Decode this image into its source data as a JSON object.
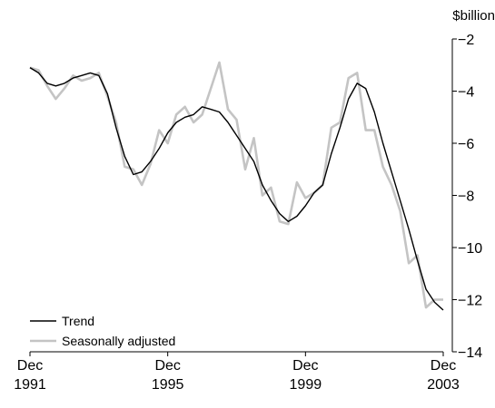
{
  "chart_data": {
    "type": "line",
    "y_unit": "$billion",
    "ylim": [
      -14,
      -2
    ],
    "y_ticks": [
      -2,
      -4,
      -6,
      -8,
      -10,
      -12,
      -14
    ],
    "y_tick_labels": [
      "−2",
      "−4",
      "−6",
      "−8",
      "−10",
      "−12",
      "−14"
    ],
    "x_ticks": [
      {
        "label_month": "Dec",
        "label_year": "1991",
        "x": "1991-12"
      },
      {
        "label_month": "Dec",
        "label_year": "1995",
        "x": "1995-12"
      },
      {
        "label_month": "Dec",
        "label_year": "1999",
        "x": "1999-12"
      },
      {
        "label_month": "Dec",
        "label_year": "2003",
        "x": "2003-12"
      }
    ],
    "grid": false,
    "legend_position": "bottom-left",
    "colors": {
      "trend": "#000000",
      "seasonally_adjusted": "#c4c4c4"
    },
    "x": [
      "1991-12",
      "1992-03",
      "1992-06",
      "1992-09",
      "1992-12",
      "1993-03",
      "1993-06",
      "1993-09",
      "1993-12",
      "1994-03",
      "1994-06",
      "1994-09",
      "1994-12",
      "1995-03",
      "1995-06",
      "1995-09",
      "1995-12",
      "1996-03",
      "1996-06",
      "1996-09",
      "1996-12",
      "1997-03",
      "1997-06",
      "1997-09",
      "1997-12",
      "1998-03",
      "1998-06",
      "1998-09",
      "1998-12",
      "1999-03",
      "1999-06",
      "1999-09",
      "1999-12",
      "2000-03",
      "2000-06",
      "2000-09",
      "2000-12",
      "2001-03",
      "2001-06",
      "2001-09",
      "2001-12",
      "2002-03",
      "2002-06",
      "2002-09",
      "2002-12",
      "2003-03",
      "2003-06",
      "2003-09",
      "2003-12"
    ],
    "series": [
      {
        "name": "Trend",
        "key": "trend",
        "values": [
          -3.1,
          -3.3,
          -3.7,
          -3.8,
          -3.7,
          -3.5,
          -3.4,
          -3.3,
          -3.4,
          -4.1,
          -5.4,
          -6.5,
          -7.2,
          -7.1,
          -6.7,
          -6.2,
          -5.6,
          -5.2,
          -5.0,
          -4.9,
          -4.6,
          -4.7,
          -4.8,
          -5.2,
          -5.7,
          -6.2,
          -6.7,
          -7.6,
          -8.2,
          -8.7,
          -9.0,
          -8.8,
          -8.4,
          -7.9,
          -7.6,
          -6.4,
          -5.4,
          -4.3,
          -3.7,
          -3.9,
          -4.8,
          -6.0,
          -7.1,
          -8.2,
          -9.3,
          -10.5,
          -11.6,
          -12.1,
          -12.4
        ]
      },
      {
        "name": "Seasonally adjusted",
        "key": "seasonally_adjusted",
        "values": [
          -3.1,
          -3.2,
          -3.8,
          -4.3,
          -3.9,
          -3.4,
          -3.6,
          -3.5,
          -3.3,
          -4.2,
          -5.2,
          -6.9,
          -7.0,
          -7.6,
          -6.8,
          -5.5,
          -6.0,
          -4.9,
          -4.6,
          -5.2,
          -4.9,
          -3.9,
          -2.9,
          -4.7,
          -5.1,
          -7.0,
          -5.8,
          -8.0,
          -7.7,
          -9.0,
          -9.1,
          -7.5,
          -8.1,
          -7.9,
          -7.6,
          -5.4,
          -5.2,
          -3.5,
          -3.3,
          -5.5,
          -5.5,
          -6.9,
          -7.6,
          -8.6,
          -10.6,
          -10.3,
          -12.3,
          -12.0,
          -12.0
        ]
      }
    ]
  }
}
